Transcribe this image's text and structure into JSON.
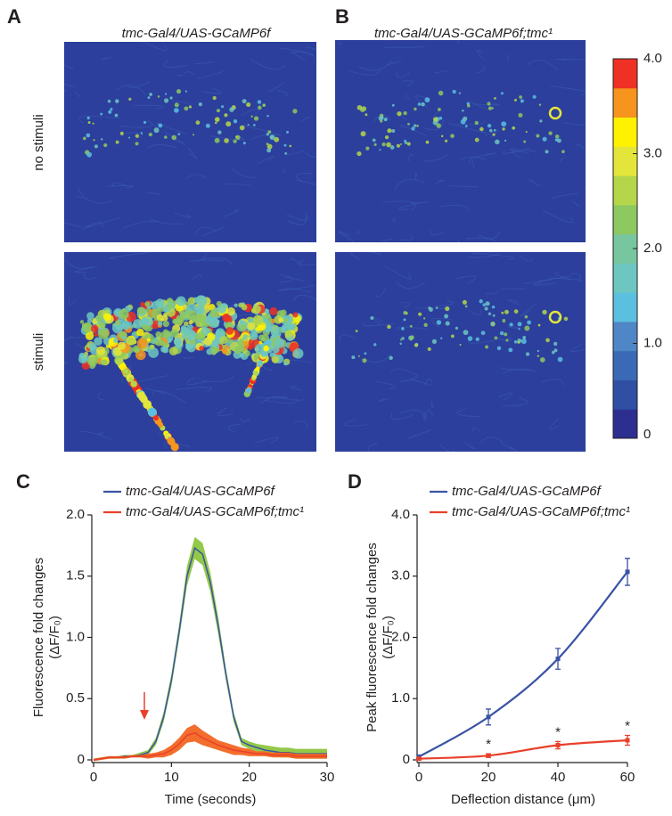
{
  "panels": [
    {
      "label": "A",
      "title": "tmc-Gal4/UAS-GCaMP6f"
    },
    {
      "label": "B",
      "title": "tmc-Gal4/UAS-GCaMP6f;tmc¹"
    }
  ],
  "rows": [
    "no stimuli",
    "stimuli"
  ],
  "colorbar": {
    "lim": [
      0,
      4
    ],
    "ticks": [
      0,
      {
        "value": 1,
        "label": "1.0"
      },
      {
        "value": 2,
        "label": "2.0"
      },
      {
        "value": 3,
        "label": "3.0"
      },
      {
        "value": 4,
        "label": "4.0"
      }
    ]
  },
  "chart_data": [
    {
      "type": "line",
      "panel_label": "C",
      "xlabel": "Time (seconds)",
      "ylabel": [
        "Fluorescence fold changes",
        "(ΔF/F₀)"
      ],
      "x": [
        0,
        1,
        2,
        3,
        4,
        5,
        6,
        7,
        8,
        9,
        10,
        11,
        12,
        13,
        14,
        15,
        16,
        17,
        18,
        19,
        20,
        21,
        22,
        23,
        24,
        25,
        26,
        27,
        28,
        29,
        30
      ],
      "xlim": [
        0,
        30
      ],
      "xticks": [
        0,
        10,
        20,
        30
      ],
      "ylim": [
        0,
        2
      ],
      "yticks": [
        0,
        0.5,
        {
          "value": 1,
          "label": "1.0"
        },
        1.5,
        {
          "value": 2,
          "label": "2.0"
        }
      ],
      "series": [
        {
          "name": "tmc-Gal4/UAS-GCaMP6f",
          "color": "#3a53a4",
          "band_color": "#8dc63f",
          "values": [
            0,
            0.01,
            0.02,
            0.02,
            0.03,
            0.03,
            0.04,
            0.06,
            0.15,
            0.35,
            0.65,
            1.05,
            1.5,
            1.73,
            1.68,
            1.45,
            1.1,
            0.7,
            0.35,
            0.15,
            0.12,
            0.1,
            0.08,
            0.07,
            0.06,
            0.06,
            0.05,
            0.05,
            0.05,
            0.05,
            0.05
          ],
          "band": [
            0.01,
            0.01,
            0.01,
            0.01,
            0.01,
            0.01,
            0.02,
            0.02,
            0.03,
            0.04,
            0.05,
            0.06,
            0.08,
            0.09,
            0.09,
            0.08,
            0.07,
            0.05,
            0.04,
            0.03,
            0.03,
            0.03,
            0.04,
            0.04,
            0.04,
            0.04,
            0.04,
            0.04,
            0.04,
            0.04,
            0.04
          ]
        },
        {
          "name": "tmc-Gal4/UAS-GCaMP6f;tmc¹",
          "color": "#e8402a",
          "band_color": "#f26522",
          "values": [
            0,
            0.01,
            0.02,
            0.02,
            0.02,
            0.03,
            0.03,
            0.03,
            0.04,
            0.05,
            0.08,
            0.13,
            0.2,
            0.22,
            0.18,
            0.15,
            0.12,
            0.1,
            0.08,
            0.07,
            0.06,
            0.05,
            0.05,
            0.04,
            0.04,
            0.04,
            0.03,
            0.03,
            0.03,
            0.03,
            0.03
          ],
          "band": [
            0.01,
            0.01,
            0.01,
            0.01,
            0.01,
            0.01,
            0.01,
            0.02,
            0.02,
            0.03,
            0.04,
            0.05,
            0.06,
            0.07,
            0.06,
            0.05,
            0.04,
            0.04,
            0.04,
            0.03,
            0.03,
            0.02,
            0.02,
            0.02,
            0.02,
            0.02,
            0.02,
            0.02,
            0.02,
            0.02,
            0.02
          ]
        }
      ]
    },
    {
      "type": "line",
      "panel_label": "D",
      "xlabel": "Deflection distance (μm)",
      "ylabel": [
        "Peak fluorescence fold changes",
        "(ΔF/F₀)"
      ],
      "x": [
        0,
        20,
        40,
        60
      ],
      "xlim": [
        0,
        60
      ],
      "xticks": [
        0,
        20,
        40,
        60
      ],
      "ylim": [
        0,
        4
      ],
      "yticks": [
        0,
        {
          "value": 1,
          "label": "1.0"
        },
        {
          "value": 2,
          "label": "2.0"
        },
        {
          "value": 3,
          "label": "3.0"
        },
        {
          "value": 4,
          "label": "4.0"
        }
      ],
      "series": [
        {
          "name": "tmc-Gal4/UAS-GCaMP6f",
          "color": "#3a53a4",
          "values": [
            0.05,
            0.7,
            1.65,
            3.07
          ],
          "errors": [
            0.03,
            0.13,
            0.17,
            0.22
          ]
        },
        {
          "name": "tmc-Gal4/UAS-GCaMP6f;tmc¹",
          "color": "#e8402a",
          "values": [
            0.02,
            0.07,
            0.24,
            0.32
          ],
          "errors": [
            0.02,
            0.03,
            0.06,
            0.08
          ],
          "annotations": [
            null,
            "*",
            "*",
            "*"
          ]
        }
      ]
    }
  ]
}
